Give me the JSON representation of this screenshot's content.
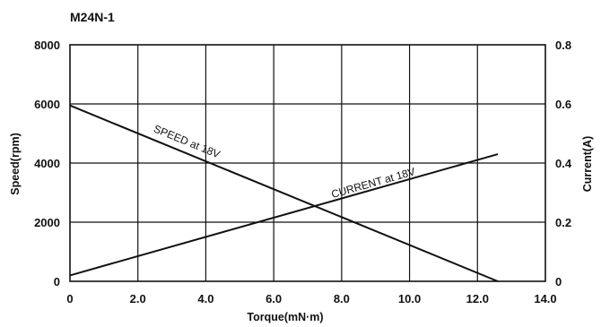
{
  "chart_data": {
    "type": "line",
    "title": "M24N-1",
    "xlabel": "Torque(mN·m)",
    "ylabel_left": "Speed(rpm)",
    "ylabel_right": "Current(A)",
    "xlim": [
      0,
      14
    ],
    "ylim_left": [
      0,
      8000
    ],
    "ylim_right": [
      0,
      0.8
    ],
    "x_ticks": [
      "0",
      "2.0",
      "4.0",
      "6.0",
      "8.0",
      "10.0",
      "12.0",
      "14.0"
    ],
    "y_left_ticks": [
      "0",
      "2000",
      "4000",
      "6000",
      "8000"
    ],
    "y_right_ticks": [
      "0",
      "0.2",
      "0.4",
      "0.6",
      "0.8"
    ],
    "grid": true,
    "series": [
      {
        "name": "SPEED at 18V",
        "axis": "left",
        "x": [
          0,
          12.6
        ],
        "y": [
          5950,
          0
        ]
      },
      {
        "name": "CURRENT at 18V",
        "axis": "right",
        "x": [
          0,
          12.6
        ],
        "y": [
          0.02,
          0.43
        ]
      }
    ]
  }
}
